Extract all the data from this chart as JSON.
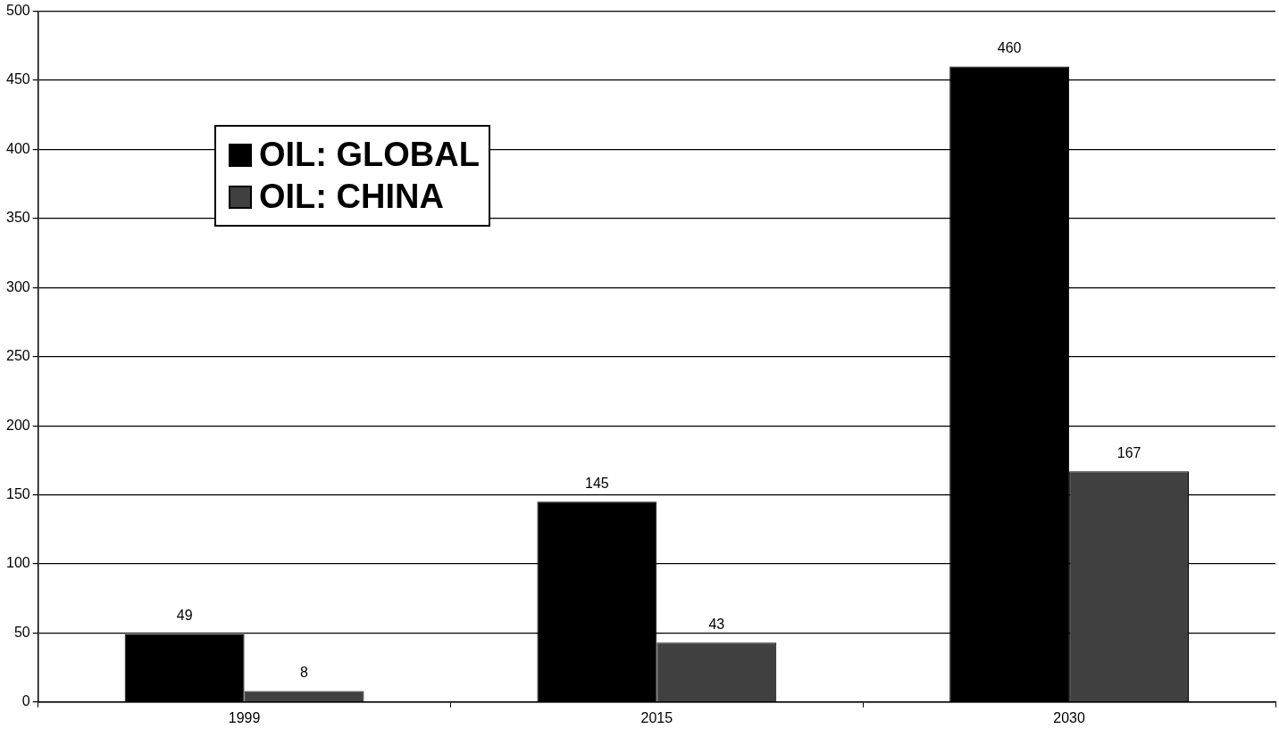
{
  "chart_data": {
    "type": "bar",
    "categories": [
      "1999",
      "2015",
      "2030"
    ],
    "series": [
      {
        "name": "OIL: GLOBAL",
        "color": "#000000",
        "values": [
          49,
          145,
          460
        ]
      },
      {
        "name": "OIL: CHINA",
        "color": "#404040",
        "values": [
          8,
          43,
          167
        ]
      }
    ],
    "ylim": [
      0,
      500
    ],
    "yticks": [
      0,
      50,
      100,
      150,
      200,
      250,
      300,
      350,
      400,
      450,
      500
    ],
    "grid": "y",
    "legend": "top left",
    "data_labels": true
  }
}
